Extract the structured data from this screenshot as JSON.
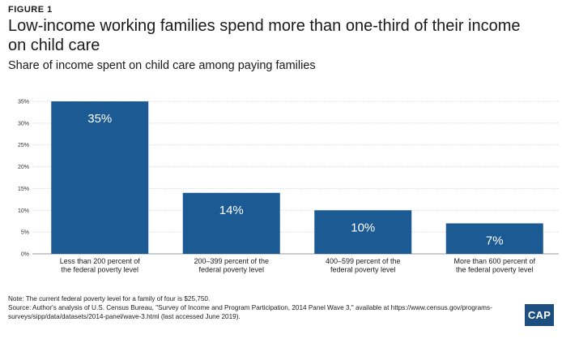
{
  "header": {
    "figure_label": "FIGURE 1",
    "title": "Low-income working families spend more than one-third of their income on child care",
    "subtitle": "Share of income spent on child care among paying families"
  },
  "chart_data": {
    "type": "bar",
    "categories": [
      [
        "Less than 200 percent of",
        "the federal poverty level"
      ],
      [
        "200–399 percent of the",
        "federal poverty level"
      ],
      [
        "400–599 percent of the",
        "federal poverty level"
      ],
      [
        "More than 600 percent of",
        "the federal poverty level"
      ]
    ],
    "values": [
      35,
      14,
      10,
      7
    ],
    "data_labels": [
      "35%",
      "14%",
      "10%",
      "7%"
    ],
    "ylim": [
      0,
      35
    ],
    "yticks": [
      0,
      5,
      10,
      15,
      20,
      25,
      30,
      35
    ],
    "ytick_labels": [
      "0%",
      "5%",
      "10%",
      "15%",
      "20%",
      "25%",
      "30%",
      "35%"
    ],
    "grid": true,
    "bar_color": "#1c5a93"
  },
  "notes": {
    "note": "Note: The current federal poverty level for a family of four is $25,750.",
    "source": "Source: Author's analysis of U.S. Census Bureau, \"Survey of Income and Program Participation, 2014 Panel Wave 3,\" available at https://www.census.gov/programs-surveys/sipp/data/datasets/2014-panel/wave-3.html (last accessed June 2019)."
  },
  "logo": {
    "text": "CAP",
    "color": "#1c4f7f"
  }
}
